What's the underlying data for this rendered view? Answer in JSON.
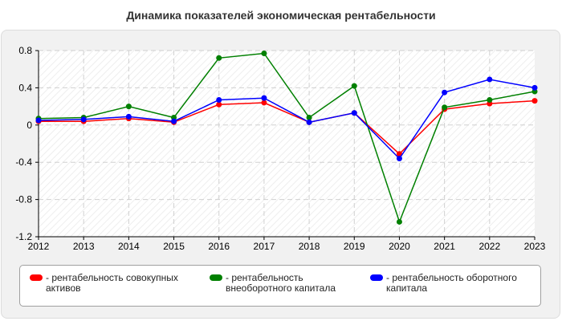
{
  "title": "Динамика показателей экономическая рентабельности",
  "chart_data": {
    "type": "line",
    "title": "Динамика показателей экономическая рентабельности",
    "xlabel": "",
    "ylabel": "",
    "x": [
      "2012",
      "2013",
      "2014",
      "2015",
      "2016",
      "2017",
      "2018",
      "2019",
      "2020",
      "2021",
      "2022",
      "2023"
    ],
    "ylim": [
      -1.2,
      0.8
    ],
    "yticks": [
      0.8,
      0.4,
      0,
      -0.4,
      -0.8,
      -1.2
    ],
    "ytick_labels": [
      "0.8",
      "0.4",
      "0",
      "-0.4",
      "-0.8",
      "-1.2"
    ],
    "grid": true,
    "legend_position": "bottom",
    "series": [
      {
        "name": "- рентабельность совокупных активов",
        "color": "#ff0000",
        "values": [
          0.04,
          0.04,
          0.07,
          0.03,
          0.22,
          0.24,
          0.03,
          0.13,
          -0.31,
          0.17,
          0.23,
          0.26
        ]
      },
      {
        "name": "- рентабельность внеоборотного капитала",
        "color": "#008000",
        "values": [
          0.07,
          0.08,
          0.2,
          0.08,
          0.72,
          0.77,
          0.08,
          0.42,
          -1.04,
          0.19,
          0.27,
          0.36
        ]
      },
      {
        "name": "- рентабельность оборотного капитала",
        "color": "#0000ff",
        "values": [
          0.05,
          0.06,
          0.09,
          0.04,
          0.27,
          0.29,
          0.03,
          0.13,
          -0.36,
          0.35,
          0.49,
          0.4
        ]
      }
    ]
  }
}
